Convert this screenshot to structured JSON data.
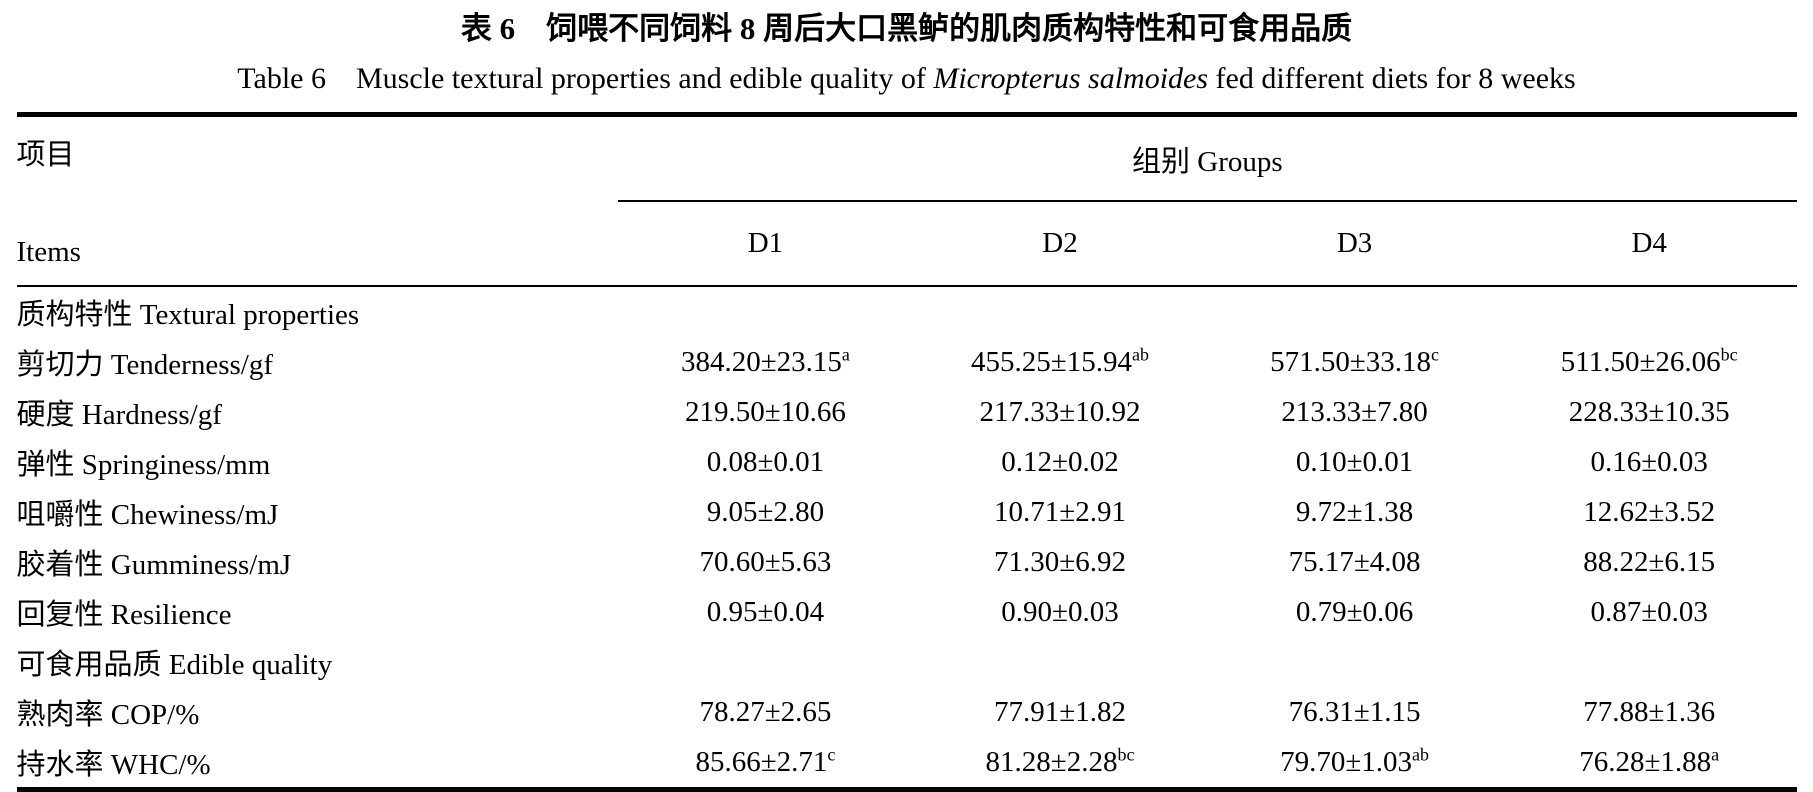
{
  "title_zh": "表 6　饲喂不同饲料 8 周后大口黑鲈的肌肉质构特性和可食用品质",
  "title_en": {
    "prefix": "Table 6 Muscle textural properties and edible quality of ",
    "species": "Micropterus salmoides",
    "suffix": " fed different diets for 8 weeks"
  },
  "header": {
    "items_zh": "项目",
    "items_en": "Items",
    "groups_label": "组别 Groups",
    "columns": [
      "D1",
      "D2",
      "D3",
      "D4"
    ]
  },
  "sections": [
    {
      "label": "质构特性 Textural properties",
      "rows": [
        {
          "label": "剪切力 Tenderness/gf",
          "values": [
            "384.20±23.15",
            "455.25±15.94",
            "571.50±33.18",
            "511.50±26.06"
          ],
          "sups": [
            "a",
            "ab",
            "c",
            "bc"
          ]
        },
        {
          "label": "硬度 Hardness/gf",
          "values": [
            "219.50±10.66",
            "217.33±10.92",
            "213.33±7.80",
            "228.33±10.35"
          ],
          "sups": [
            "",
            "",
            "",
            ""
          ]
        },
        {
          "label": "弹性 Springiness/mm",
          "values": [
            "0.08±0.01",
            "0.12±0.02",
            "0.10±0.01",
            "0.16±0.03"
          ],
          "sups": [
            "",
            "",
            "",
            ""
          ]
        },
        {
          "label": "咀嚼性 Chewiness/mJ",
          "values": [
            "9.05±2.80",
            "10.71±2.91",
            "9.72±1.38",
            "12.62±3.52"
          ],
          "sups": [
            "",
            "",
            "",
            ""
          ]
        },
        {
          "label": "胶着性 Gumminess/mJ",
          "values": [
            "70.60±5.63",
            "71.30±6.92",
            "75.17±4.08",
            "88.22±6.15"
          ],
          "sups": [
            "",
            "",
            "",
            ""
          ]
        },
        {
          "label": "回复性 Resilience",
          "values": [
            "0.95±0.04",
            "0.90±0.03",
            "0.79±0.06",
            "0.87±0.03"
          ],
          "sups": [
            "",
            "",
            "",
            ""
          ]
        }
      ]
    },
    {
      "label": "可食用品质 Edible quality",
      "rows": [
        {
          "label": "熟肉率 COP/%",
          "values": [
            "78.27±2.65",
            "77.91±1.82",
            "76.31±1.15",
            "77.88±1.36"
          ],
          "sups": [
            "",
            "",
            "",
            ""
          ]
        },
        {
          "label": "持水率 WHC/%",
          "values": [
            "85.66±2.71",
            "81.28±2.28",
            "79.70±1.03",
            "76.28±1.88"
          ],
          "sups": [
            "c",
            "bc",
            "ab",
            "a"
          ]
        }
      ]
    }
  ]
}
